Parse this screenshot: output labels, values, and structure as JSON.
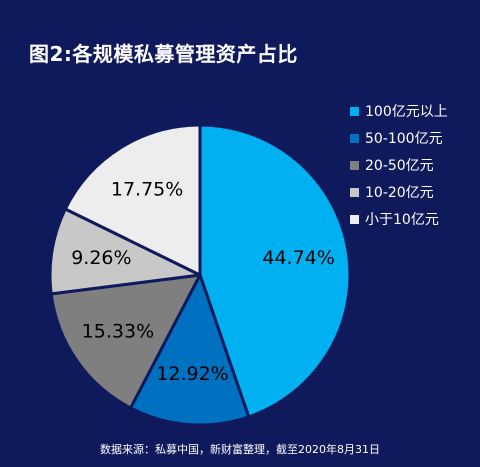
{
  "title": "图2:各规模私募管理资产占比",
  "source": "数据来源：私募中国，新财富整理，截至2020年8月31日",
  "chart_data": {
    "type": "pie",
    "categories": [
      "100亿元以上",
      "50-100亿元",
      "20-50亿元",
      "10-20亿元",
      "小于10亿元"
    ],
    "values": [
      44.74,
      12.92,
      15.33,
      9.26,
      17.75
    ],
    "labels": [
      "44.74%",
      "12.92%",
      "15.33%",
      "9.26%",
      "17.75%"
    ],
    "colors": [
      "#00b0f0",
      "#0070c0",
      "#7f7f7f",
      "#c8c8c8",
      "#ededed"
    ],
    "legend_position": "right",
    "start": "12 o'clock",
    "direction": "clockwise"
  }
}
